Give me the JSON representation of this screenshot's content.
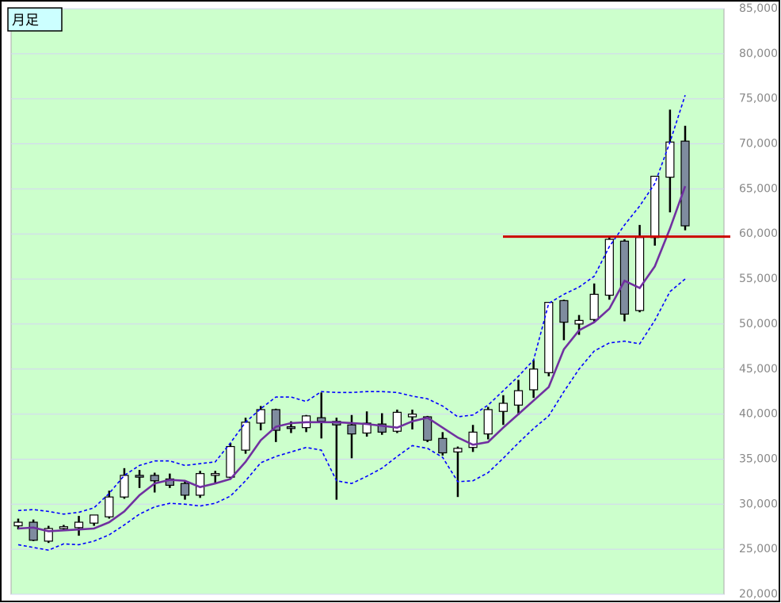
{
  "chart_data": {
    "type": "candlestick",
    "title": "月足",
    "ylim": [
      20000,
      85000
    ],
    "yticks": [
      {
        "value": 20000,
        "label": "20,000"
      },
      {
        "value": 25000,
        "label": "25,000"
      },
      {
        "value": 30000,
        "label": "30,000"
      },
      {
        "value": 35000,
        "label": "35,000"
      },
      {
        "value": 40000,
        "label": "40,000"
      },
      {
        "value": 45000,
        "label": "45,000"
      },
      {
        "value": 50000,
        "label": "50,000"
      },
      {
        "value": 55000,
        "label": "55,000"
      },
      {
        "value": 60000,
        "label": "60,000"
      },
      {
        "value": 65000,
        "label": "65,000"
      },
      {
        "value": 70000,
        "label": "70,000"
      },
      {
        "value": 75000,
        "label": "75,000"
      },
      {
        "value": 80000,
        "label": "80,000"
      },
      {
        "value": 85000,
        "label": "85,000"
      }
    ],
    "grid": true,
    "up_color": "#ffffff",
    "down_color": "#7f8c9f",
    "background": "#ccffcc",
    "grid_color": "#d4d4f4",
    "open": [
      27600,
      28000,
      25900,
      27300,
      27400,
      27900,
      28600,
      30800,
      33200,
      33200,
      32800,
      32300,
      31000,
      33200,
      33000,
      36000,
      39000,
      40500,
      38600,
      38500,
      39600,
      39200,
      38800,
      37900,
      38900,
      38100,
      39700,
      39700,
      37300,
      35800,
      36300,
      37800,
      40300,
      41000,
      42700,
      44600,
      52600,
      50000,
      50500,
      53200,
      59200,
      51500,
      59600,
      66300,
      70300
    ],
    "high": [
      28400,
      28300,
      27600,
      27700,
      28700,
      28800,
      31500,
      34000,
      33800,
      33500,
      33400,
      32600,
      33700,
      33700,
      36800,
      39600,
      40900,
      40600,
      39200,
      39900,
      42400,
      39600,
      39900,
      40300,
      40100,
      40500,
      40500,
      39800,
      38000,
      36400,
      38800,
      40800,
      42100,
      43800,
      46000,
      52400,
      52700,
      51000,
      54500,
      59800,
      59400,
      61000,
      66400,
      73800,
      72000
    ],
    "low": [
      27200,
      25900,
      25700,
      27000,
      26500,
      27600,
      28400,
      30600,
      31800,
      31300,
      31800,
      30500,
      30700,
      32300,
      32800,
      35600,
      38200,
      36900,
      37900,
      38000,
      37300,
      30500,
      35100,
      37500,
      37700,
      37900,
      38300,
      36900,
      35400,
      30800,
      35800,
      37200,
      38800,
      39900,
      41800,
      44200,
      48200,
      48800,
      50300,
      52700,
      50300,
      51300,
      58700,
      62400,
      60400
    ],
    "close": [
      28000,
      26000,
      27300,
      27500,
      28000,
      28800,
      30800,
      33200,
      33000,
      32600,
      32100,
      31000,
      33400,
      33400,
      36400,
      39100,
      40500,
      38200,
      38400,
      39800,
      39200,
      38800,
      37800,
      39000,
      38000,
      40200,
      40000,
      37100,
      35700,
      36200,
      38000,
      40500,
      41200,
      42600,
      45000,
      52400,
      50200,
      50400,
      53300,
      59400,
      51100,
      59600,
      66400,
      70200,
      60900
    ],
    "lines": [
      {
        "color": "#7030a0",
        "dashed": false,
        "values": [
          27300,
          27400,
          27000,
          27100,
          27200,
          27300,
          28000,
          29200,
          31000,
          32300,
          32700,
          32600,
          31900,
          32300,
          32800,
          34700,
          37100,
          38600,
          39000,
          39100,
          39100,
          39100,
          39000,
          38900,
          38700,
          38500,
          39200,
          39600,
          38500,
          37400,
          36600,
          36900,
          38500,
          40000,
          41500,
          43000,
          47200,
          49300,
          50200,
          51700,
          54800,
          54000,
          56400,
          60600,
          65300
        ]
      },
      {
        "color": "#0000ff",
        "dashed": true,
        "values": [
          29300,
          29400,
          29200,
          28900,
          29100,
          29600,
          31200,
          33200,
          34300,
          34800,
          34800,
          34300,
          34500,
          34700,
          36800,
          39100,
          40600,
          41900,
          41900,
          41400,
          42500,
          42400,
          42400,
          42500,
          42500,
          42400,
          42000,
          41700,
          40900,
          39700,
          39900,
          41000,
          42600,
          44200,
          46000,
          52300,
          53300,
          54100,
          55300,
          58600,
          61000,
          63100,
          65600,
          70200,
          75400
        ]
      },
      {
        "color": "#0000ff",
        "dashed": true,
        "values": [
          25500,
          25200,
          24900,
          25600,
          25500,
          25900,
          26600,
          27700,
          28900,
          29700,
          30100,
          30000,
          29800,
          30100,
          30900,
          32600,
          34600,
          35300,
          35800,
          36300,
          36000,
          32600,
          32300,
          33100,
          34000,
          35300,
          36500,
          36200,
          35200,
          32500,
          32600,
          33500,
          35100,
          36800,
          38400,
          39800,
          42500,
          45000,
          47000,
          47900,
          48100,
          47800,
          50400,
          53600,
          55000
        ]
      }
    ],
    "hline": {
      "value": 59700,
      "color": "#cc0000"
    }
  }
}
